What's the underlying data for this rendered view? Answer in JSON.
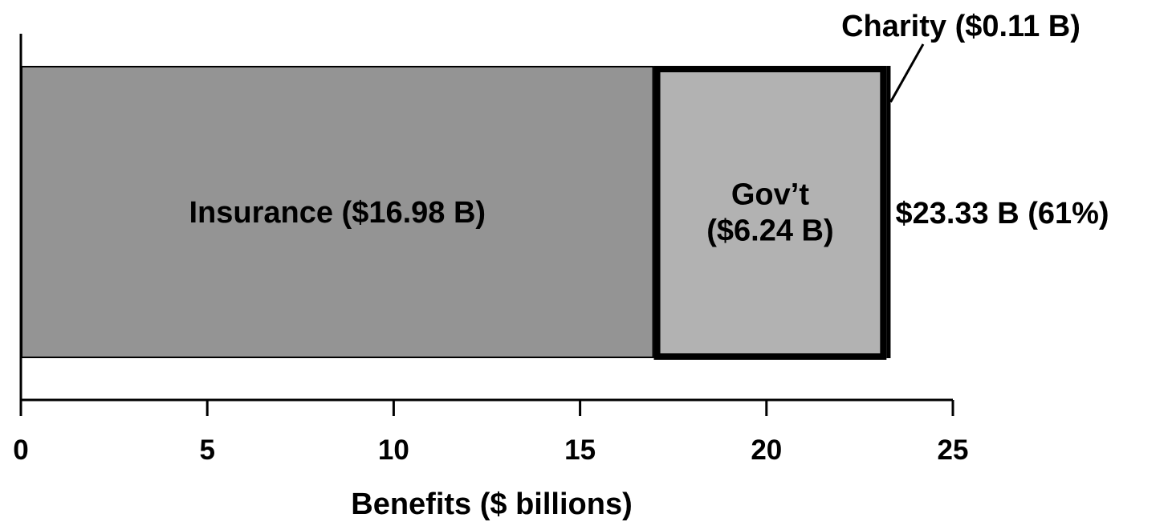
{
  "chart_data": {
    "type": "bar",
    "orientation": "horizontal",
    "stacked": true,
    "xlabel": "Benefits ($ billions)",
    "ylabel": "",
    "xlim": [
      0,
      25
    ],
    "xticks": [
      0,
      5,
      10,
      15,
      20,
      25
    ],
    "xtick_labels": [
      "0",
      "5",
      "10",
      "15",
      "20",
      "25"
    ],
    "grid": false,
    "legend": "none",
    "series": [
      {
        "name": "Insurance",
        "value": 16.98,
        "label_lines": [
          "Insurance ($16.98 B)"
        ],
        "color": "#949494",
        "border": "thin"
      },
      {
        "name": "Gov't",
        "value": 6.24,
        "label_lines": [
          "Gov’t",
          "($6.24 B)"
        ],
        "color": "#b2b2b2",
        "border": "thick"
      },
      {
        "name": "Charity",
        "value": 0.11,
        "callout": "Charity ($0.11 B)",
        "color": "#000000"
      }
    ],
    "total": {
      "value": 23.33,
      "label": "$23.33 B (61%)"
    }
  }
}
